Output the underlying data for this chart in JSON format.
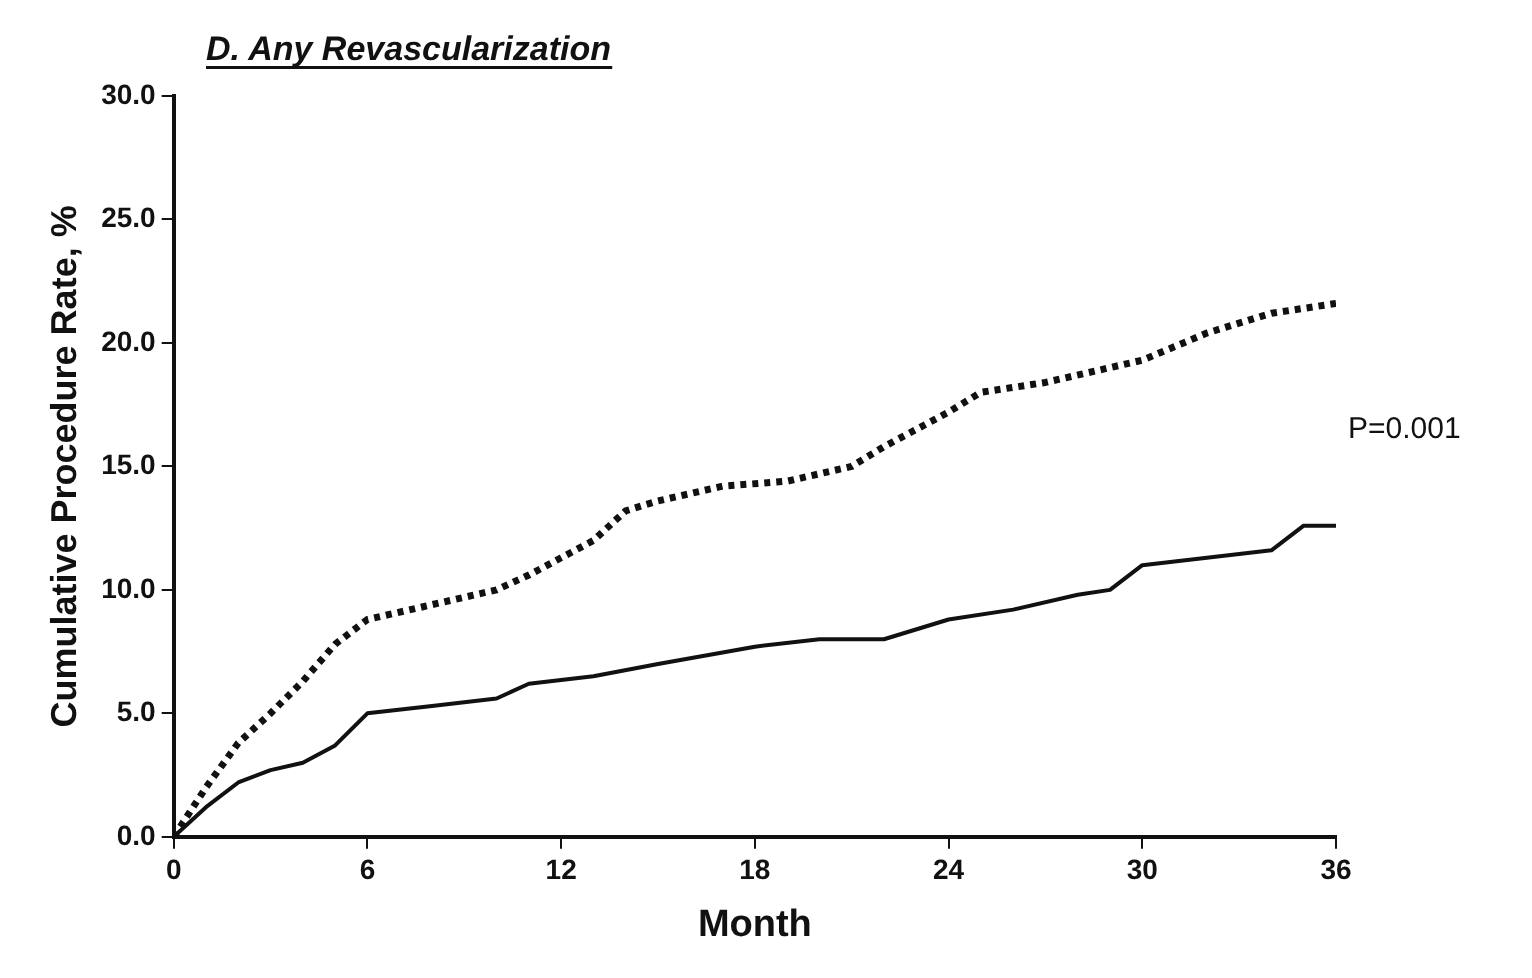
{
  "chart_data": {
    "type": "line",
    "title": "D. Any Revascularization",
    "xlabel": "Month",
    "ylabel": "Cumulative Procedure Rate, %",
    "xlim": [
      0,
      36
    ],
    "xticks": [
      0,
      6,
      12,
      18,
      24,
      30,
      36
    ],
    "ylim": [
      0,
      30
    ],
    "yticks": [
      {
        "value": 0,
        "label": "0.0"
      },
      {
        "value": 5,
        "label": "5.0"
      },
      {
        "value": 10,
        "label": "10.0"
      },
      {
        "value": 15,
        "label": "15.0"
      },
      {
        "value": 20,
        "label": "20.0"
      },
      {
        "value": 25,
        "label": "25.0"
      },
      {
        "value": 30,
        "label": "30.0"
      }
    ],
    "grid": false,
    "legend": false,
    "marker": "none",
    "series": [
      {
        "color": "#111111",
        "line_style": "dotted",
        "x": [
          0,
          1,
          2,
          3,
          4,
          5,
          6,
          8,
          10,
          11,
          12,
          13,
          14,
          15,
          17,
          19,
          21,
          22,
          24,
          25,
          27,
          29,
          30,
          32,
          34,
          36
        ],
        "values": [
          0,
          2,
          3.8,
          5,
          6.3,
          7.8,
          8.8,
          9.4,
          10,
          10.6,
          11.3,
          12,
          13.2,
          13.6,
          14.2,
          14.4,
          15,
          15.8,
          17.2,
          18,
          18.4,
          19,
          19.3,
          20.4,
          21.2,
          21.6
        ]
      },
      {
        "color": "#111111",
        "line_style": "solid",
        "x": [
          0,
          1,
          2,
          3,
          4,
          5,
          6,
          8,
          10,
          11,
          13,
          15,
          18,
          20,
          22,
          24,
          26,
          28,
          29,
          30,
          32,
          34,
          35,
          36
        ],
        "values": [
          0,
          1.2,
          2.2,
          2.7,
          3,
          3.7,
          5,
          5.3,
          5.6,
          6.2,
          6.5,
          7,
          7.7,
          8,
          8,
          8.8,
          9.2,
          9.8,
          10,
          11,
          11.3,
          11.6,
          12.6,
          12.6
        ]
      }
    ],
    "annotations": [
      "P=0.001"
    ]
  }
}
